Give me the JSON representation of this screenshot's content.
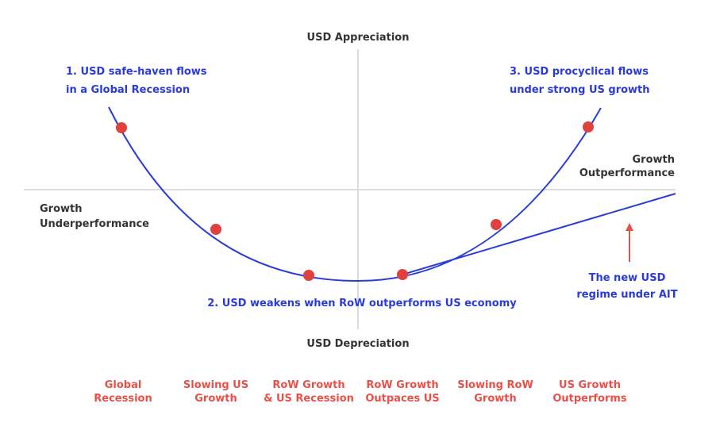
{
  "axes": {
    "top": "USD Appreciation",
    "bottom": "USD Depreciation",
    "left": [
      "Growth",
      "Underperformance"
    ],
    "right": [
      "Growth",
      "Outperformance"
    ]
  },
  "annotations": [
    [
      "1. USD safe-haven flows",
      "in a Global Recession"
    ],
    [
      "2. USD weakens when RoW outperforms US economy"
    ],
    [
      "3. USD procyclical flows",
      "under strong US growth"
    ],
    [
      "The new USD",
      "regime under AIT"
    ]
  ],
  "stages": [
    [
      "Global",
      "Recession"
    ],
    [
      "Slowing US",
      "Growth"
    ],
    [
      "RoW Growth",
      "& US Recession"
    ],
    [
      "RoW Growth",
      "Outpaces US"
    ],
    [
      "Slowing RoW",
      "Growth"
    ],
    [
      "US Growth",
      "Outperforms"
    ]
  ]
}
